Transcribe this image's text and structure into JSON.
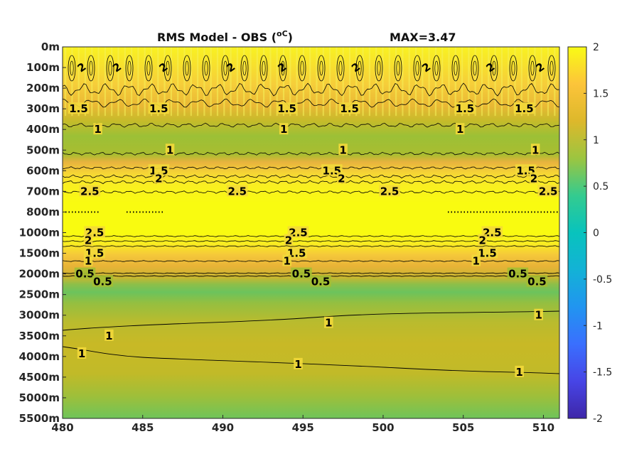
{
  "chart_data": {
    "type": "heatmap",
    "title": "RMS Model - OBS (",
    "title_unit": "oC",
    "title_close": ")",
    "max_label": "MAX=3.47",
    "x_ticks": [
      "480",
      "485",
      "490",
      "495",
      "500",
      "505",
      "510"
    ],
    "x_values": [
      480,
      485,
      490,
      495,
      500,
      505,
      510
    ],
    "xlim": [
      480,
      511
    ],
    "y_ticks": [
      "0m",
      "100m",
      "200m",
      "300m",
      "400m",
      "500m",
      "600m",
      "700m",
      "800m",
      "1000m",
      "1500m",
      "2000m",
      "2500m",
      "3000m",
      "3500m",
      "4000m",
      "4500m",
      "5000m",
      "5500m"
    ],
    "colorbar": {
      "ticks": [
        "2",
        "1.5",
        "1",
        "0.5",
        "0",
        "-0.5",
        "-1",
        "-1.5",
        "-2"
      ],
      "range": [
        -2,
        2
      ],
      "colormap": "parula"
    },
    "depth_profile_rms": [
      {
        "level": "0m",
        "value": 2.0
      },
      {
        "level": "100m",
        "value": 2.0
      },
      {
        "level": "200m",
        "value": 1.9
      },
      {
        "level": "300m",
        "value": 1.5
      },
      {
        "level": "400m",
        "value": 1.0
      },
      {
        "level": "500m",
        "value": 1.0
      },
      {
        "level": "600m",
        "value": 1.5
      },
      {
        "level": "700m",
        "value": 2.5
      },
      {
        "level": "800m",
        "value": 3.0
      },
      {
        "level": "1000m",
        "value": 2.8
      },
      {
        "level": "1500m",
        "value": 1.3
      },
      {
        "level": "2000m",
        "value": 0.8
      },
      {
        "level": "2500m",
        "value": 1.05
      },
      {
        "level": "3000m",
        "value": 1.1
      },
      {
        "level": "3500m",
        "value": 1.1
      },
      {
        "level": "4000m",
        "value": 1.05
      },
      {
        "level": "4500m",
        "value": 1.0
      },
      {
        "level": "5000m",
        "value": 0.85
      },
      {
        "level": "5500m",
        "value": 0.75
      }
    ],
    "contour_labels": [
      {
        "text": "2",
        "x": 481.2,
        "level": "100m"
      },
      {
        "text": "2",
        "x": 483.4,
        "level": "100m"
      },
      {
        "text": "2",
        "x": 486.3,
        "level": "100m"
      },
      {
        "text": "2",
        "x": 490.5,
        "level": "100m"
      },
      {
        "text": "2",
        "x": 493.7,
        "level": "100m"
      },
      {
        "text": "2",
        "x": 498.3,
        "level": "100m"
      },
      {
        "text": "2",
        "x": 502.7,
        "level": "100m"
      },
      {
        "text": "2",
        "x": 506.7,
        "level": "100m"
      },
      {
        "text": "2",
        "x": 509.8,
        "level": "100m"
      },
      {
        "text": "1.5",
        "x": 481.0,
        "level": "300m"
      },
      {
        "text": "1.5",
        "x": 486.0,
        "level": "300m"
      },
      {
        "text": "1.5",
        "x": 494.0,
        "level": "300m"
      },
      {
        "text": "1.5",
        "x": 497.9,
        "level": "300m"
      },
      {
        "text": "1.5",
        "x": 505.1,
        "level": "300m"
      },
      {
        "text": "1.5",
        "x": 508.8,
        "level": "300m"
      },
      {
        "text": "1",
        "x": 482.2,
        "level": "400m"
      },
      {
        "text": "1",
        "x": 493.8,
        "level": "400m"
      },
      {
        "text": "1",
        "x": 504.8,
        "level": "400m"
      },
      {
        "text": "1",
        "x": 486.7,
        "level": "500m"
      },
      {
        "text": "1",
        "x": 497.5,
        "level": "500m"
      },
      {
        "text": "1",
        "x": 509.5,
        "level": "500m"
      },
      {
        "text": "1.5",
        "x": 486.0,
        "level": "600m"
      },
      {
        "text": "1.5",
        "x": 496.8,
        "level": "600m"
      },
      {
        "text": "1.5",
        "x": 508.9,
        "level": "600m"
      },
      {
        "text": "2",
        "x": 486.0,
        "level": "600m+"
      },
      {
        "text": "2",
        "x": 497.4,
        "level": "600m+"
      },
      {
        "text": "2",
        "x": 509.4,
        "level": "600m+"
      },
      {
        "text": "2.5",
        "x": 481.7,
        "level": "700m"
      },
      {
        "text": "2.5",
        "x": 490.9,
        "level": "700m"
      },
      {
        "text": "2.5",
        "x": 500.4,
        "level": "700m"
      },
      {
        "text": "2.5",
        "x": 510.3,
        "level": "700m"
      },
      {
        "text": "2.5",
        "x": 482.0,
        "level": "1000m"
      },
      {
        "text": "2.5",
        "x": 494.7,
        "level": "1000m"
      },
      {
        "text": "2.5",
        "x": 506.8,
        "level": "1000m"
      },
      {
        "text": "2",
        "x": 481.6,
        "level": "1000m+"
      },
      {
        "text": "2",
        "x": 494.1,
        "level": "1000m+"
      },
      {
        "text": "2",
        "x": 506.2,
        "level": "1000m+"
      },
      {
        "text": "1.5",
        "x": 482.0,
        "level": "1500m"
      },
      {
        "text": "1.5",
        "x": 494.6,
        "level": "1500m"
      },
      {
        "text": "1.5",
        "x": 506.5,
        "level": "1500m"
      },
      {
        "text": "1",
        "x": 481.6,
        "level": "1500m+"
      },
      {
        "text": "1",
        "x": 494.0,
        "level": "1500m+"
      },
      {
        "text": "1",
        "x": 505.8,
        "level": "1500m+"
      },
      {
        "text": "0.5",
        "x": 481.4,
        "level": "2000m"
      },
      {
        "text": "0.5",
        "x": 494.9,
        "level": "2000m"
      },
      {
        "text": "0.5",
        "x": 508.4,
        "level": "2000m"
      },
      {
        "text": "0.5",
        "x": 482.5,
        "level": "2000m+"
      },
      {
        "text": "0.5",
        "x": 496.1,
        "level": "2000m+"
      },
      {
        "text": "0.5",
        "x": 509.6,
        "level": "2000m+"
      },
      {
        "text": "1",
        "x": 482.9,
        "level": "3500m"
      },
      {
        "text": "1",
        "x": 496.6,
        "level": "3000m+"
      },
      {
        "text": "1",
        "x": 509.7,
        "level": "3000m"
      },
      {
        "text": "1",
        "x": 481.2,
        "level": "4000m-"
      },
      {
        "text": "1",
        "x": 494.7,
        "level": "4000m+"
      },
      {
        "text": "1",
        "x": 508.5,
        "level": "4000m++"
      }
    ]
  }
}
